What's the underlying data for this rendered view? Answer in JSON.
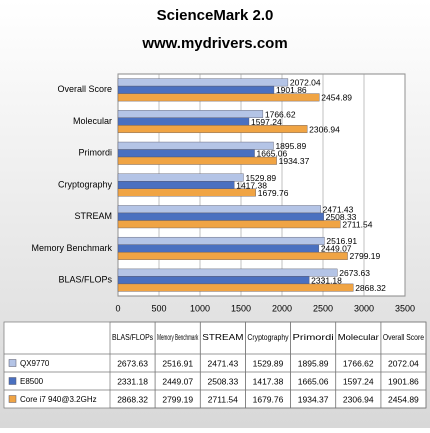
{
  "chart_data": {
    "type": "hbar",
    "title": "ScienceMark 2.0",
    "subtitle": "www.mydrivers.com",
    "categories": [
      "BLAS/FLOPs",
      "Memory Benchmark",
      "STREAM",
      "Cryptography",
      "Primordi",
      "Molecular",
      "Overall Score"
    ],
    "series": [
      {
        "name": "QX9770",
        "color": "#b4c4e6",
        "values": [
          2673.63,
          2516.91,
          2471.43,
          1529.89,
          1895.89,
          1766.62,
          2072.04
        ]
      },
      {
        "name": "E8500",
        "color": "#4a70c0",
        "values": [
          2331.18,
          2449.07,
          2508.33,
          1417.38,
          1665.06,
          1597.24,
          1901.86
        ]
      },
      {
        "name": "Core i7 940@3.2GHz",
        "color": "#f0a444",
        "values": [
          2868.32,
          2799.19,
          2711.54,
          1679.76,
          1934.37,
          2306.94,
          2454.89
        ]
      }
    ],
    "xlim": [
      0,
      3500
    ],
    "xticks": [
      0,
      500,
      1000,
      1500,
      2000,
      2500,
      3000,
      3500
    ],
    "grid": true
  }
}
